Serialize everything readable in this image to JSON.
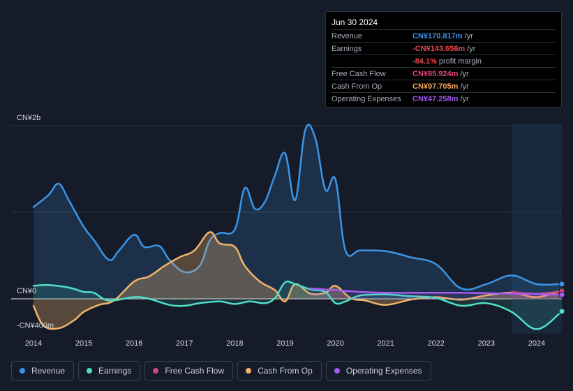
{
  "tooltip": {
    "date": "Jun 30 2024",
    "rows": [
      {
        "label": "Revenue",
        "value": "CN¥170.817m",
        "unit": "/yr",
        "color": "#3b95e6"
      },
      {
        "label": "Earnings",
        "value": "-CN¥143.656m",
        "unit": "/yr",
        "color": "#e8474e"
      },
      {
        "label": "",
        "value": "-84.1%",
        "unit": "profit margin",
        "color": "#e8474e"
      },
      {
        "label": "Free Cash Flow",
        "value": "CN¥85.924m",
        "unit": "/yr",
        "color": "#e0457f"
      },
      {
        "label": "Cash From Op",
        "value": "CN¥97.705m",
        "unit": "/yr",
        "color": "#f2a65a"
      },
      {
        "label": "Operating Expenses",
        "value": "CN¥47.258m",
        "unit": "/yr",
        "color": "#a55bf0"
      }
    ]
  },
  "legend": [
    {
      "label": "Revenue",
      "color": "#3b95e6"
    },
    {
      "label": "Earnings",
      "color": "#4ee0c8"
    },
    {
      "label": "Free Cash Flow",
      "color": "#d6457f"
    },
    {
      "label": "Cash From Op",
      "color": "#f2b36a"
    },
    {
      "label": "Operating Expenses",
      "color": "#a55bf0"
    }
  ],
  "chart_data": {
    "type": "area",
    "y_unit": "CN¥ m",
    "ylim": [
      -400,
      2000
    ],
    "y_tick_labels": [
      {
        "value": 2000,
        "label": "CN¥2b"
      },
      {
        "value": 0,
        "label": "CN¥0"
      },
      {
        "value": -400,
        "label": "-CN¥400m"
      }
    ],
    "x_tick_labels": [
      "2014",
      "2015",
      "2016",
      "2017",
      "2018",
      "2019",
      "2020",
      "2021",
      "2022",
      "2023",
      "2024"
    ],
    "xlim": [
      2014.0,
      2024.5
    ],
    "forecast_shade_from": 2023.5,
    "series": [
      {
        "name": "Revenue",
        "color": "#3b95e6",
        "fill_opacity": 0.18,
        "x": [
          2014.0,
          2014.3,
          2014.5,
          2014.7,
          2015.0,
          2015.2,
          2015.5,
          2015.7,
          2016.0,
          2016.2,
          2016.5,
          2016.7,
          2017.0,
          2017.3,
          2017.5,
          2017.7,
          2018.0,
          2018.2,
          2018.4,
          2018.6,
          2018.8,
          2019.0,
          2019.2,
          2019.4,
          2019.6,
          2019.8,
          2020.0,
          2020.2,
          2020.5,
          2021.0,
          2021.5,
          2022.0,
          2022.5,
          2023.0,
          2023.5,
          2024.0,
          2024.5
        ],
        "y": [
          1060,
          1200,
          1330,
          1140,
          830,
          680,
          450,
          560,
          740,
          600,
          610,
          450,
          310,
          380,
          670,
          760,
          800,
          1280,
          1040,
          1120,
          1430,
          1680,
          1140,
          1950,
          1860,
          1260,
          1380,
          560,
          560,
          550,
          480,
          400,
          120,
          170,
          270,
          170,
          171
        ]
      },
      {
        "name": "Earnings",
        "color": "#4ee0c8",
        "fill_opacity": 0.12,
        "x": [
          2014.0,
          2014.3,
          2014.7,
          2015.0,
          2015.2,
          2015.5,
          2016.0,
          2016.3,
          2016.7,
          2017.0,
          2017.3,
          2017.7,
          2018.0,
          2018.3,
          2018.6,
          2018.8,
          2019.0,
          2019.2,
          2019.5,
          2019.8,
          2020.0,
          2020.2,
          2020.5,
          2021.0,
          2021.5,
          2022.0,
          2022.5,
          2023.0,
          2023.5,
          2024.0,
          2024.5
        ],
        "y": [
          150,
          160,
          130,
          80,
          70,
          -20,
          20,
          0,
          -70,
          -80,
          -50,
          -30,
          -60,
          -30,
          -50,
          10,
          190,
          170,
          110,
          80,
          -50,
          -30,
          40,
          50,
          30,
          10,
          -80,
          -50,
          -150,
          -350,
          -144
        ]
      },
      {
        "name": "Cash From Op",
        "color": "#f2b36a",
        "fill_opacity": 0.3,
        "x": [
          2014.0,
          2014.2,
          2014.5,
          2014.8,
          2015.0,
          2015.3,
          2015.6,
          2016.0,
          2016.3,
          2016.6,
          2016.9,
          2017.2,
          2017.5,
          2017.7,
          2018.0,
          2018.2,
          2018.5,
          2018.8,
          2019.0,
          2019.2,
          2019.5,
          2019.8,
          2020.0,
          2020.3,
          2020.6,
          2021.0,
          2021.5,
          2022.0,
          2022.5,
          2023.0,
          2023.5,
          2024.0,
          2024.5
        ],
        "y": [
          -80,
          -310,
          -340,
          -250,
          -150,
          -70,
          -20,
          200,
          260,
          380,
          480,
          560,
          770,
          640,
          600,
          380,
          200,
          100,
          -30,
          170,
          60,
          70,
          150,
          10,
          -20,
          -70,
          -10,
          20,
          -10,
          40,
          70,
          20,
          98
        ]
      },
      {
        "name": "Free Cash Flow",
        "color": "#d6457f",
        "fill_opacity": 0.15,
        "x": [
          2023.5,
          2024.0,
          2024.5
        ],
        "y": [
          80,
          60,
          86
        ]
      },
      {
        "name": "Operating Expenses",
        "color": "#a55bf0",
        "fill_opacity": 0.12,
        "x": [
          2019.5,
          2020.0,
          2020.5,
          2021.0,
          2021.5,
          2022.0,
          2022.5,
          2023.0,
          2023.5,
          2024.0,
          2024.5
        ],
        "y": [
          120,
          100,
          80,
          70,
          70,
          70,
          70,
          65,
          60,
          55,
          47
        ]
      }
    ]
  }
}
